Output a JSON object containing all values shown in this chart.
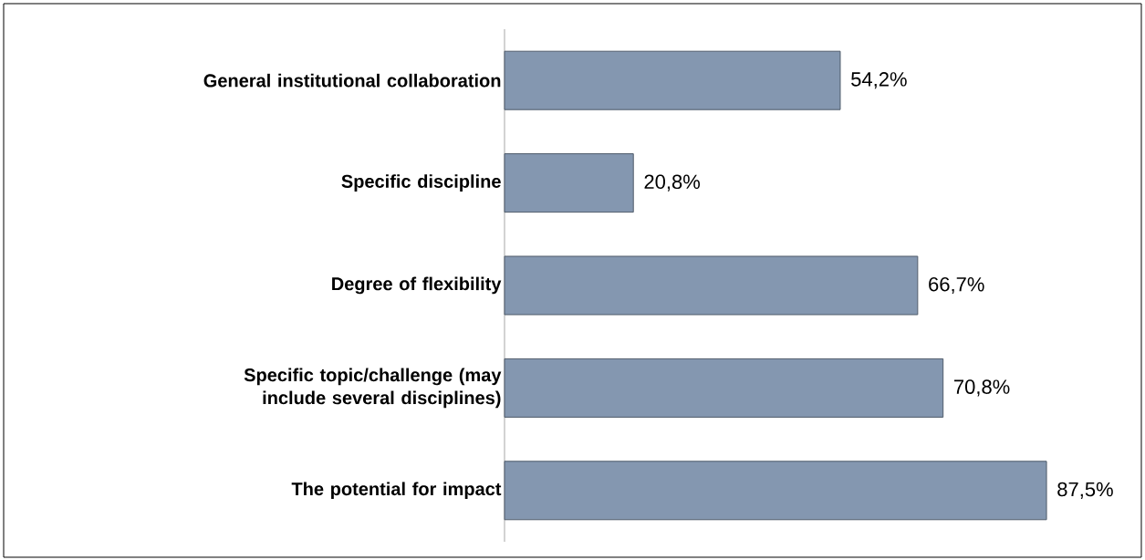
{
  "chart_data": {
    "type": "bar",
    "orientation": "horizontal",
    "categories": [
      "General institutional collaboration",
      "Specific discipline",
      "Degree of flexibility",
      "Specific topic/challenge (may include several disciplines)",
      "The potential for impact"
    ],
    "values": [
      54.2,
      20.8,
      66.7,
      70.8,
      87.5
    ],
    "value_labels": [
      "54,2%",
      "20,8%",
      "66,7%",
      "70,8%",
      "87,5%"
    ],
    "color": "#8497b0",
    "tick_labels": "y"
  }
}
